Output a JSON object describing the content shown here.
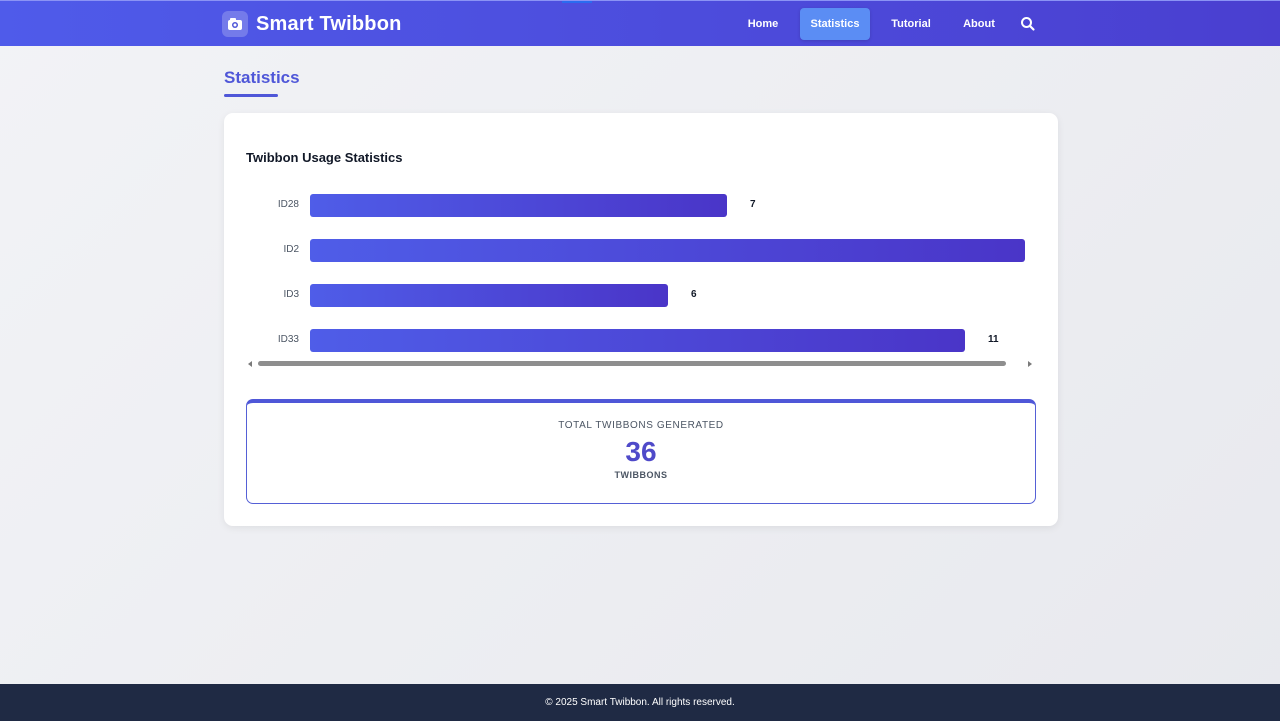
{
  "header": {
    "brand_title": "Smart Twibbon",
    "brand_icon": "camera-icon",
    "nav": [
      {
        "label": "Home",
        "active": false
      },
      {
        "label": "Statistics",
        "active": true
      },
      {
        "label": "Tutorial",
        "active": false
      },
      {
        "label": "About",
        "active": false
      }
    ],
    "search_icon": "search-icon"
  },
  "main": {
    "page_title": "Statistics",
    "card_title": "Twibbon Usage Statistics",
    "total_label": "TOTAL TWIBBONS GENERATED",
    "total_value": "36",
    "total_unit": "TWIBBONS"
  },
  "chart_data": {
    "type": "bar",
    "orientation": "horizontal",
    "categories": [
      "ID28",
      "ID2",
      "ID3",
      "ID33"
    ],
    "values": [
      7,
      12,
      6,
      11
    ],
    "value_labels": [
      "7",
      "",
      "6",
      "11"
    ],
    "xlim": [
      0,
      12
    ],
    "grid": false,
    "accent": "#4f57d8"
  },
  "footer": {
    "text": "© 2025 Smart Twibbon. All rights reserved."
  }
}
